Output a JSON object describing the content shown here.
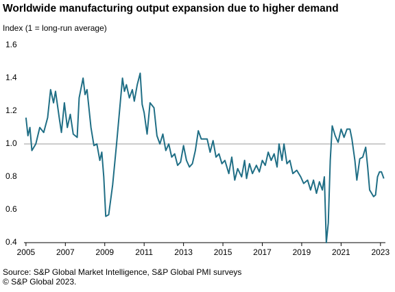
{
  "chart_data": {
    "type": "line",
    "title": "Worldwide manufacturing output expansion due to higher demand",
    "y_axis_label": "Index (1 = long-run average)",
    "source": "Source: S&P Global Market Intelligence, S&P Global PMI surveys",
    "copyright": "© S&P Global 2023.",
    "xlim": [
      2004.9,
      2023.25
    ],
    "xticks": [
      2005,
      2007,
      2009,
      2011,
      2013,
      2015,
      2017,
      2019,
      2021,
      2023
    ],
    "ylim": [
      0.4,
      1.6
    ],
    "yticks": [
      0.4,
      0.6,
      0.8,
      {
        "value": 1,
        "label": "1.0"
      },
      1.2,
      1.4,
      1.6
    ],
    "reference_line": 1,
    "reference_color": "#999999",
    "series": [
      {
        "name": "Worldwide manufacturing output",
        "color": "#1f6e85",
        "x": [
          2005.0,
          2005.1,
          2005.2,
          2005.3,
          2005.5,
          2005.7,
          2005.9,
          2006.1,
          2006.25,
          2006.4,
          2006.5,
          2006.7,
          2006.8,
          2006.95,
          2007.1,
          2007.25,
          2007.4,
          2007.6,
          2007.7,
          2007.9,
          2008.0,
          2008.1,
          2008.3,
          2008.45,
          2008.6,
          2008.75,
          2008.85,
          2008.95,
          2009.05,
          2009.2,
          2009.4,
          2009.6,
          2009.75,
          2009.9,
          2010.0,
          2010.1,
          2010.25,
          2010.4,
          2010.5,
          2010.65,
          2010.8,
          2010.9,
          2011.0,
          2011.15,
          2011.3,
          2011.5,
          2011.65,
          2011.8,
          2011.95,
          2012.1,
          2012.25,
          2012.4,
          2012.55,
          2012.7,
          2012.85,
          2013.0,
          2013.15,
          2013.3,
          2013.45,
          2013.6,
          2013.75,
          2013.9,
          2014.2,
          2014.35,
          2014.5,
          2014.65,
          2014.8,
          2014.95,
          2015.1,
          2015.3,
          2015.45,
          2015.6,
          2015.75,
          2015.95,
          2016.1,
          2016.2,
          2016.35,
          2016.5,
          2016.7,
          2016.85,
          2017.0,
          2017.15,
          2017.3,
          2017.45,
          2017.6,
          2017.75,
          2017.85,
          2018.0,
          2018.1,
          2018.25,
          2018.4,
          2018.55,
          2018.75,
          2018.95,
          2019.1,
          2019.3,
          2019.45,
          2019.6,
          2019.75,
          2019.9,
          2020.05,
          2020.15,
          2020.25,
          2020.35,
          2020.45,
          2020.55,
          2020.7,
          2020.85,
          2021.0,
          2021.15,
          2021.3,
          2021.45,
          2021.55,
          2021.7,
          2021.8,
          2021.95,
          2022.1,
          2022.25,
          2022.35,
          2022.45,
          2022.55,
          2022.65,
          2022.75,
          2022.85,
          2022.95,
          2023.05,
          2023.17
        ],
        "values": [
          1.16,
          1.05,
          1.1,
          0.96,
          1.0,
          1.1,
          1.07,
          1.16,
          1.33,
          1.25,
          1.32,
          1.15,
          1.07,
          1.25,
          1.1,
          1.18,
          1.06,
          1.04,
          1.28,
          1.4,
          1.3,
          1.33,
          1.1,
          0.99,
          1.0,
          0.9,
          0.95,
          0.8,
          0.56,
          0.57,
          0.75,
          1.0,
          1.2,
          1.4,
          1.32,
          1.36,
          1.28,
          1.33,
          1.26,
          1.36,
          1.43,
          1.24,
          1.19,
          1.06,
          1.25,
          1.22,
          1.05,
          1.0,
          1.06,
          0.96,
          1.0,
          0.92,
          0.94,
          0.87,
          0.89,
          0.99,
          0.9,
          0.86,
          0.88,
          0.96,
          1.08,
          1.03,
          1.03,
          0.95,
          1.02,
          0.92,
          0.94,
          0.88,
          0.9,
          0.82,
          0.92,
          0.78,
          0.85,
          0.8,
          0.9,
          0.79,
          0.88,
          0.82,
          0.87,
          0.83,
          0.9,
          0.87,
          0.95,
          0.9,
          0.94,
          0.86,
          1.0,
          0.9,
          1.0,
          0.88,
          0.9,
          0.82,
          0.84,
          0.8,
          0.76,
          0.78,
          0.72,
          0.78,
          0.7,
          0.77,
          0.72,
          0.8,
          0.4,
          0.52,
          0.9,
          1.11,
          1.05,
          1.01,
          1.09,
          1.04,
          1.09,
          1.09,
          1.03,
          0.9,
          0.78,
          0.91,
          0.92,
          0.98,
          0.86,
          0.72,
          0.7,
          0.68,
          0.69,
          0.8,
          0.83,
          0.83,
          0.79
        ]
      }
    ]
  }
}
